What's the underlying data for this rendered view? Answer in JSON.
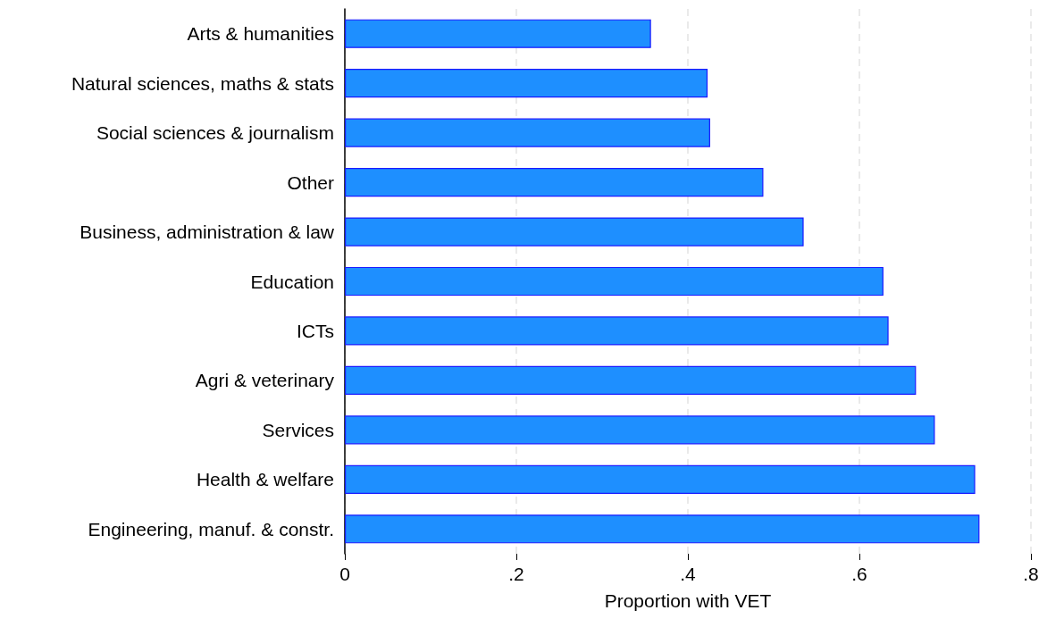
{
  "chart_data": {
    "type": "bar",
    "orientation": "horizontal",
    "xlabel": "Proportion with VET",
    "categories": [
      "Arts & humanities",
      "Natural sciences, maths & stats",
      "Social sciences & journalism",
      "Other",
      "Business, administration & law",
      "Education",
      "ICTs",
      "Agri & veterinary",
      "Services",
      "Health & welfare",
      "Engineering, manuf. & constr."
    ],
    "values": [
      0.357,
      0.423,
      0.426,
      0.488,
      0.535,
      0.628,
      0.634,
      0.666,
      0.688,
      0.735,
      0.74
    ],
    "color": "#1e8fff",
    "xlim": [
      0,
      0.8
    ],
    "xticks": [
      0,
      {
        "value": 0.2,
        "label": ".2"
      },
      {
        "value": 0.4,
        "label": ".4"
      },
      {
        "value": 0.6,
        "label": ".6"
      },
      {
        "value": 0.8,
        "label": ".8"
      }
    ],
    "grid": "x"
  }
}
